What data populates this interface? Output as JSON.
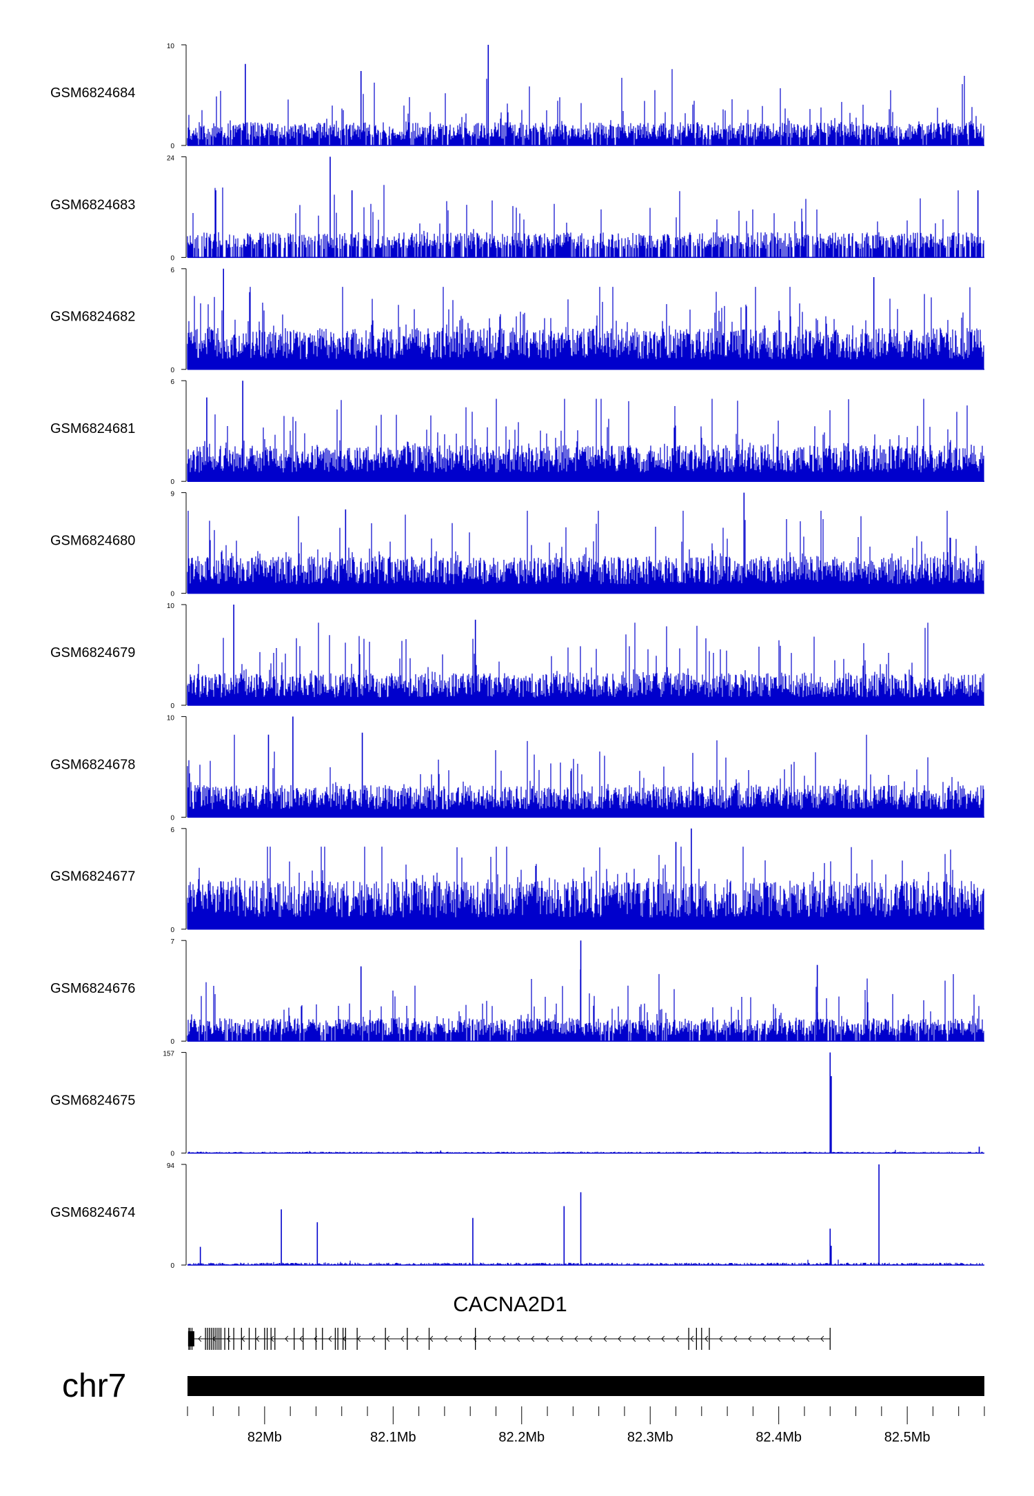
{
  "chart_data": {
    "type": "area",
    "color": "#0000CC",
    "region": {
      "chrom": "chr7",
      "start": 81940000,
      "end": 82560000
    },
    "tracks": [
      {
        "name": "GSM6824684",
        "ymax": 10,
        "ymin_label": "0",
        "ymax_label": "10",
        "profile": {
          "kind": "noisy",
          "base": 1.6,
          "spike_rate": 0.1,
          "spike_mean": 3.8,
          "density": 0.9,
          "seed": 684
        },
        "peaks": [
          {
            "x": 82174000,
            "y": 10
          },
          {
            "x": 81985000,
            "y": 8.1
          },
          {
            "x": 82075000,
            "y": 7.4
          }
        ]
      },
      {
        "name": "GSM6824683",
        "ymax": 24,
        "ymin_label": "0",
        "ymax_label": "24",
        "profile": {
          "kind": "stepped",
          "levels": [
            2,
            4,
            6,
            8
          ],
          "base_level": 4,
          "spike_rate": 0.07,
          "spike_mean": 10,
          "density": 0.75,
          "seed": 683
        },
        "peaks": [
          {
            "x": 82051000,
            "y": 24
          },
          {
            "x": 82068000,
            "y": 16
          },
          {
            "x": 81962000,
            "y": 16
          },
          {
            "x": 82555000,
            "y": 16
          }
        ]
      },
      {
        "name": "GSM6824682",
        "ymax": 6,
        "ymin_label": "0",
        "ymax_label": "6",
        "profile": {
          "kind": "noisy",
          "base": 1.7,
          "spike_rate": 0.16,
          "spike_mean": 2.6,
          "density": 1.0,
          "seed": 682
        },
        "peaks": [
          {
            "x": 81968000,
            "y": 6
          },
          {
            "x": 82474000,
            "y": 5.5
          }
        ]
      },
      {
        "name": "GSM6824681",
        "ymax": 6,
        "ymin_label": "0",
        "ymax_label": "6",
        "profile": {
          "kind": "noisy",
          "base": 1.5,
          "spike_rate": 0.14,
          "spike_mean": 2.5,
          "density": 1.0,
          "seed": 681
        },
        "peaks": [
          {
            "x": 81983000,
            "y": 6
          },
          {
            "x": 81955000,
            "y": 5
          }
        ]
      },
      {
        "name": "GSM6824680",
        "ymax": 9,
        "ymin_label": "0",
        "ymax_label": "9",
        "profile": {
          "kind": "noisy",
          "base": 2.3,
          "spike_rate": 0.13,
          "spike_mean": 3.6,
          "density": 1.0,
          "seed": 680
        },
        "peaks": [
          {
            "x": 82373000,
            "y": 9
          },
          {
            "x": 82063000,
            "y": 7.5
          }
        ]
      },
      {
        "name": "GSM6824679",
        "ymax": 10,
        "ymin_label": "0",
        "ymax_label": "10",
        "profile": {
          "kind": "noisy",
          "base": 2.2,
          "spike_rate": 0.13,
          "spike_mean": 3.8,
          "density": 1.0,
          "seed": 679
        },
        "peaks": [
          {
            "x": 81976000,
            "y": 10
          },
          {
            "x": 82164000,
            "y": 8.5
          }
        ]
      },
      {
        "name": "GSM6824678",
        "ymax": 10,
        "ymin_label": "0",
        "ymax_label": "10",
        "profile": {
          "kind": "noisy",
          "base": 2.2,
          "spike_rate": 0.12,
          "spike_mean": 3.6,
          "density": 1.0,
          "seed": 678
        },
        "peaks": [
          {
            "x": 82022000,
            "y": 10
          },
          {
            "x": 82003000,
            "y": 8.2
          },
          {
            "x": 82076000,
            "y": 8.4
          }
        ]
      },
      {
        "name": "GSM6824677",
        "ymax": 6,
        "ymin_label": "0",
        "ymax_label": "6",
        "profile": {
          "kind": "noisy",
          "base": 2.0,
          "spike_rate": 0.15,
          "spike_mean": 2.4,
          "density": 1.0,
          "seed": 677
        },
        "peaks": [
          {
            "x": 82332000,
            "y": 6
          },
          {
            "x": 82320000,
            "y": 5.2
          }
        ]
      },
      {
        "name": "GSM6824676",
        "ymax": 7,
        "ymin_label": "0",
        "ymax_label": "7",
        "profile": {
          "kind": "noisy",
          "base": 1.1,
          "spike_rate": 0.12,
          "spike_mean": 2.4,
          "density": 0.9,
          "seed": 676
        },
        "peaks": [
          {
            "x": 82246000,
            "y": 7
          },
          {
            "x": 82075000,
            "y": 5.2
          },
          {
            "x": 82430000,
            "y": 5.3
          }
        ]
      },
      {
        "name": "GSM6824675",
        "ymax": 157,
        "ymin_label": "0",
        "ymax_label": "157",
        "profile": {
          "kind": "flat",
          "base": 1.5,
          "spike_rate": 0.01,
          "spike_mean": 2,
          "density": 0.6,
          "seed": 675
        },
        "peaks": [
          {
            "x": 82440000,
            "y": 157
          },
          {
            "x": 82440900,
            "y": 120
          },
          {
            "x": 82556000,
            "y": 10
          },
          {
            "x": 82137000,
            "y": 4
          }
        ]
      },
      {
        "name": "GSM6824674",
        "ymax": 94,
        "ymin_label": "0",
        "ymax_label": "94",
        "profile": {
          "kind": "flat",
          "base": 1.5,
          "spike_rate": 0.01,
          "spike_mean": 3,
          "density": 0.6,
          "seed": 674
        },
        "peaks": [
          {
            "x": 81950000,
            "y": 17
          },
          {
            "x": 82013000,
            "y": 52
          },
          {
            "x": 82041000,
            "y": 40
          },
          {
            "x": 82162000,
            "y": 44
          },
          {
            "x": 82233000,
            "y": 55
          },
          {
            "x": 82246000,
            "y": 68
          },
          {
            "x": 82440000,
            "y": 34
          },
          {
            "x": 82440800,
            "y": 18
          },
          {
            "x": 82478000,
            "y": 94
          }
        ]
      }
    ],
    "gene": {
      "name": "CACNA2D1",
      "strand": "-",
      "start": 81941000,
      "end": 82440000,
      "exons": [
        81941000,
        81942000,
        81943500,
        81954000,
        81955500,
        81957000,
        81958500,
        81960000,
        81961500,
        81963000,
        81964500,
        81966000,
        81969000,
        81972000,
        81976000,
        81982000,
        81988000,
        81993000,
        82000000,
        82002000,
        82005000,
        82008000,
        82023000,
        82030000,
        82040000,
        82045000,
        82055000,
        82057000,
        82061000,
        82063000,
        82072000,
        82094000,
        82111000,
        82128000,
        82164000,
        82330000,
        82336000,
        82340000,
        82346000,
        82440000
      ]
    },
    "chromosome_label": "chr7",
    "axis": {
      "ticks": [
        82000000,
        82100000,
        82200000,
        82300000,
        82400000,
        82500000
      ],
      "tick_labels": [
        "82Mb",
        "82.1Mb",
        "82.2Mb",
        "82.3Mb",
        "82.4Mb",
        "82.5Mb"
      ],
      "minor_step": 20000
    }
  }
}
